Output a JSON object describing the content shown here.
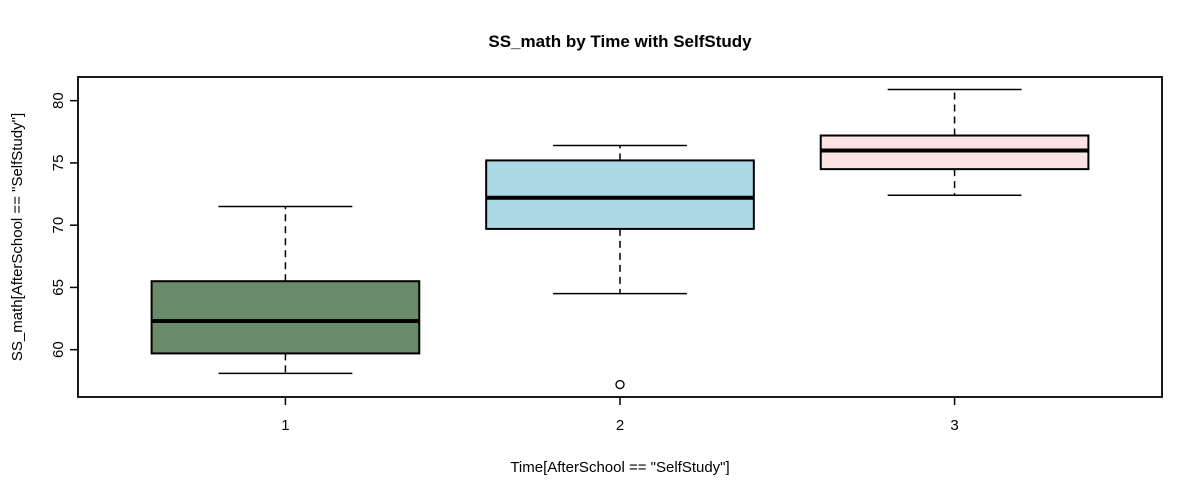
{
  "chart_data": {
    "type": "boxplot",
    "title": "SS_math by Time with SelfStudy",
    "xlabel": "Time[AfterSchool == \"SelfStudy\"]",
    "ylabel": "SS_math[AfterSchool == \"SelfStudy\"]",
    "categories": [
      "1",
      "2",
      "3"
    ],
    "yticks": [
      60,
      65,
      70,
      75,
      80
    ],
    "ylim": [
      56.2,
      81.9
    ],
    "xlim": [
      0.38,
      3.62
    ],
    "grid": false,
    "legend": "none",
    "box_width": 0.8,
    "cap_width": 0.4,
    "axis_color": "#000000",
    "background_color": "#ffffff",
    "series": [
      {
        "category": "1",
        "x": 1,
        "color": "#698B69",
        "lower_whisker": 58.1,
        "q1": 59.7,
        "median": 62.3,
        "q3": 65.5,
        "upper_whisker": 71.5,
        "outliers": []
      },
      {
        "category": "2",
        "x": 2,
        "color": "#ADD8E6",
        "lower_whisker": 64.5,
        "q1": 69.7,
        "median": 72.2,
        "q3": 75.2,
        "upper_whisker": 76.4,
        "outliers": [
          57.2
        ]
      },
      {
        "category": "3",
        "x": 3,
        "color": "#FCE3E3",
        "lower_whisker": 72.4,
        "q1": 74.5,
        "median": 76.0,
        "q3": 77.2,
        "upper_whisker": 80.9,
        "outliers": []
      }
    ]
  }
}
